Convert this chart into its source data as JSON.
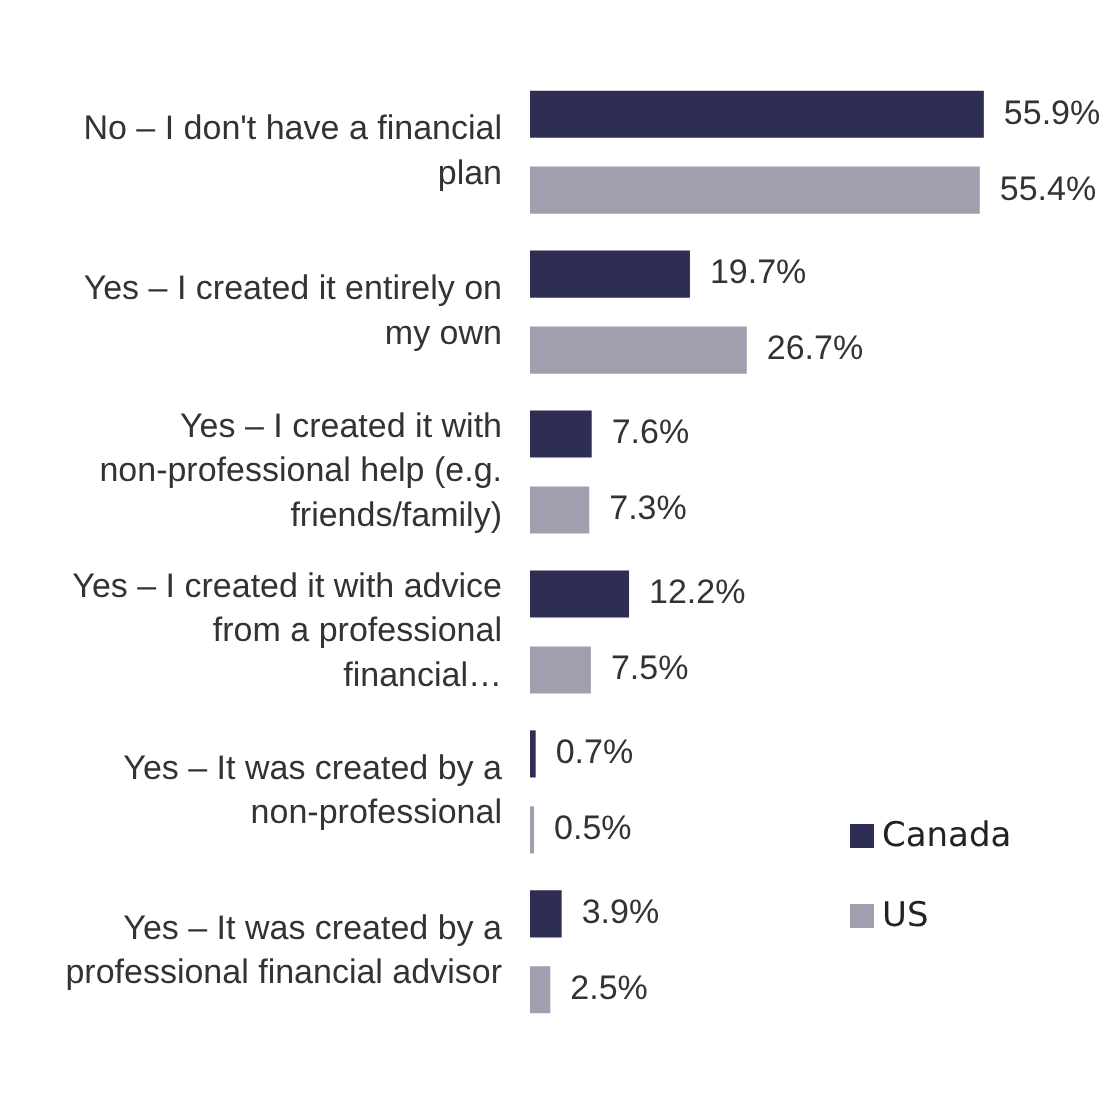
{
  "chart_data": {
    "type": "bar",
    "orientation": "horizontal",
    "categories": [
      "No – I don't have a financial plan",
      "Yes – I created it entirely on my own",
      "Yes – I created it with non-professional help (e.g. friends/family)",
      "Yes – I created it with advice from a professional financial…",
      "Yes – It was created by a non-professional",
      "Yes – It was created by a professional financial advisor"
    ],
    "series": [
      {
        "name": "Canada",
        "color": "#2e2d54",
        "values": [
          55.9,
          19.7,
          7.6,
          12.2,
          0.7,
          3.9
        ],
        "value_labels": [
          "55.9%",
          "19.7%",
          "7.6%",
          "12.2%",
          "0.7%",
          "3.9%"
        ]
      },
      {
        "name": "US",
        "color": "#a09fb0",
        "values": [
          55.4,
          26.7,
          7.3,
          7.5,
          0.5,
          2.5
        ],
        "value_labels": [
          "55.4%",
          "26.7%",
          "7.3%",
          "7.5%",
          "0.5%",
          "2.5%"
        ]
      }
    ],
    "legend": "right",
    "grid": false
  }
}
